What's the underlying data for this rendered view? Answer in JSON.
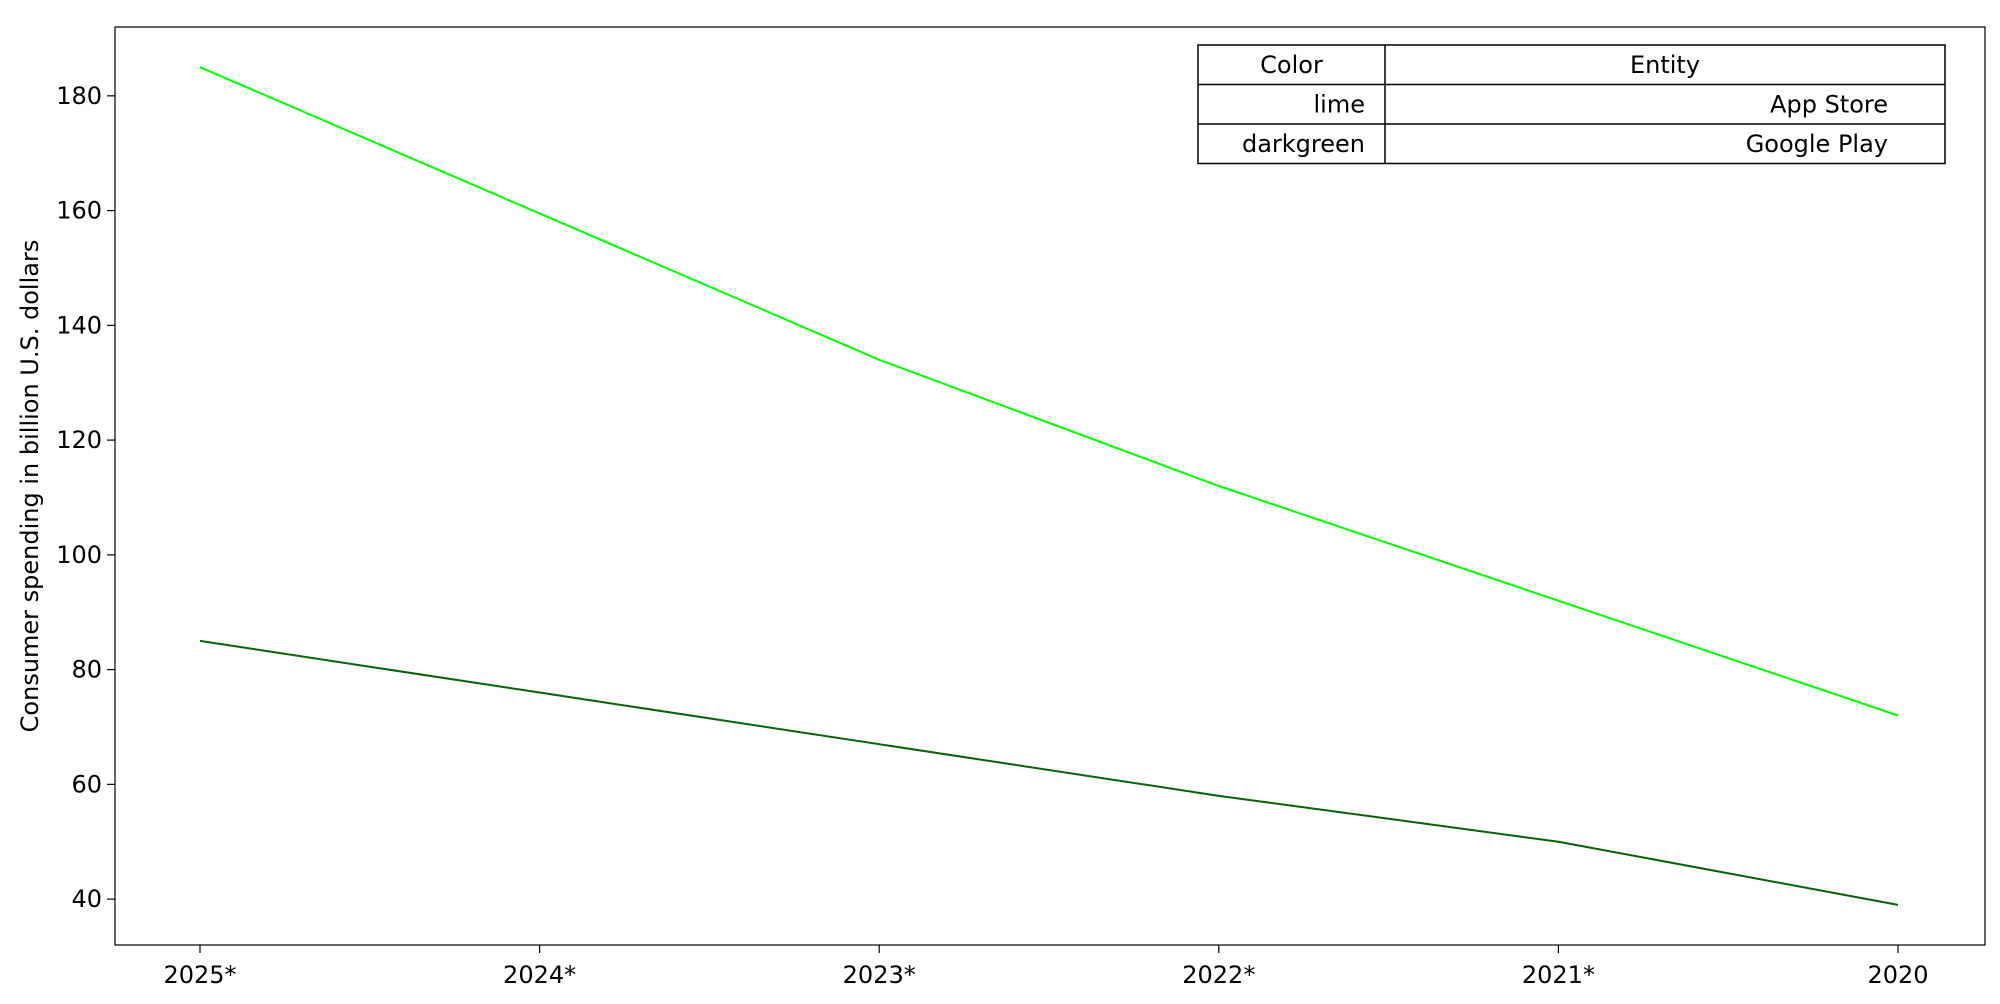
{
  "chart_data": {
    "type": "line",
    "title": "",
    "xlabel": "",
    "ylabel": "Consumer spending in billion U.S. dollars",
    "categories": [
      "2025*",
      "2024*",
      "2023*",
      "2022*",
      "2021*",
      "2020"
    ],
    "series": [
      {
        "name": "App Store",
        "color": "#00ff00",
        "values": [
          185,
          159.5,
          134,
          112,
          92,
          72
        ]
      },
      {
        "name": "Google Play",
        "color": "#006400",
        "values": [
          85,
          76,
          67,
          58,
          50,
          39
        ]
      }
    ],
    "ylim": [
      32,
      192
    ],
    "yticks": [
      40,
      60,
      80,
      100,
      120,
      140,
      160,
      180
    ],
    "grid": false,
    "legend": {
      "placement": "top-right",
      "style": "table",
      "headers": [
        "Color",
        "Entity"
      ],
      "rows": [
        {
          "color_name": "lime",
          "entity": "App Store"
        },
        {
          "color_name": "darkgreen",
          "entity": "Google Play"
        }
      ]
    }
  }
}
